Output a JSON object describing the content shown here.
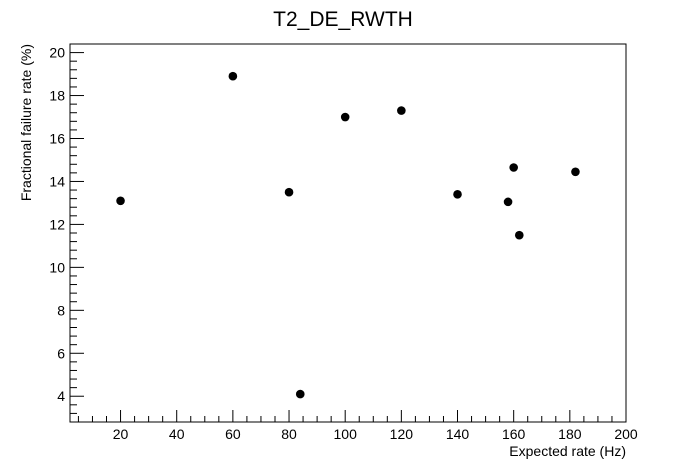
{
  "chart_data": {
    "type": "scatter",
    "title": "T2_DE_RWTH",
    "xlabel": "Expected rate (Hz)",
    "ylabel": "Fractional failure rate (%)",
    "xlim": [
      2,
      200
    ],
    "ylim": [
      2.8,
      20.4
    ],
    "xticks": [
      20,
      40,
      60,
      80,
      100,
      120,
      140,
      160,
      180,
      200
    ],
    "yticks": [
      4,
      6,
      8,
      10,
      12,
      14,
      16,
      18,
      20
    ],
    "grid": false,
    "marker_color": "#000000",
    "points": [
      {
        "x": 20,
        "y": 13.1
      },
      {
        "x": 60,
        "y": 18.9
      },
      {
        "x": 80,
        "y": 13.5
      },
      {
        "x": 84,
        "y": 4.1
      },
      {
        "x": 100,
        "y": 17.0
      },
      {
        "x": 120,
        "y": 17.3
      },
      {
        "x": 140,
        "y": 13.4
      },
      {
        "x": 158,
        "y": 13.05
      },
      {
        "x": 160,
        "y": 14.65
      },
      {
        "x": 162,
        "y": 11.5
      },
      {
        "x": 182,
        "y": 14.45
      }
    ]
  }
}
